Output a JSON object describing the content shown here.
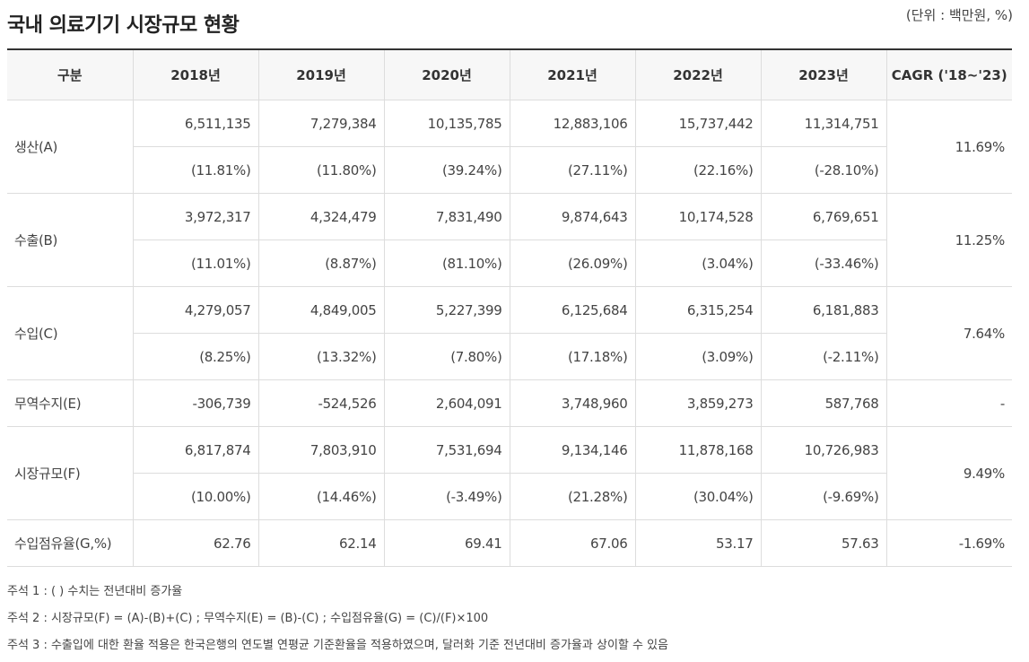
{
  "title": "국내 의료기기 시장규모 현황",
  "unit": "(단위 : 백만원, %)",
  "table": {
    "headers": [
      "구분",
      "2018년",
      "2019년",
      "2020년",
      "2021년",
      "2022년",
      "2023년",
      "CAGR ('18~'23)"
    ],
    "rows": [
      {
        "label": "생산(A)",
        "values": [
          "6,511,135",
          "7,279,384",
          "10,135,785",
          "12,883,106",
          "15,737,442",
          "11,314,751"
        ],
        "growth": [
          "(11.81%)",
          "(11.80%)",
          "(39.24%)",
          "(27.11%)",
          "(22.16%)",
          "(-28.10%)"
        ],
        "cagr": "11.69%"
      },
      {
        "label": "수출(B)",
        "values": [
          "3,972,317",
          "4,324,479",
          "7,831,490",
          "9,874,643",
          "10,174,528",
          "6,769,651"
        ],
        "growth": [
          "(11.01%)",
          "(8.87%)",
          "(81.10%)",
          "(26.09%)",
          "(3.04%)",
          "(-33.46%)"
        ],
        "cagr": "11.25%"
      },
      {
        "label": "수입(C)",
        "values": [
          "4,279,057",
          "4,849,005",
          "5,227,399",
          "6,125,684",
          "6,315,254",
          "6,181,883"
        ],
        "growth": [
          "(8.25%)",
          "(13.32%)",
          "(7.80%)",
          "(17.18%)",
          "(3.09%)",
          "(-2.11%)"
        ],
        "cagr": "7.64%"
      },
      {
        "label": "무역수지(E)",
        "values": [
          "-306,739",
          "-524,526",
          "2,604,091",
          "3,748,960",
          "3,859,273",
          "587,768"
        ],
        "cagr": "-"
      },
      {
        "label": "시장규모(F)",
        "values": [
          "6,817,874",
          "7,803,910",
          "7,531,694",
          "9,134,146",
          "11,878,168",
          "10,726,983"
        ],
        "growth": [
          "(10.00%)",
          "(14.46%)",
          "(-3.49%)",
          "(21.28%)",
          "(30.04%)",
          "(-9.69%)"
        ],
        "cagr": "9.49%"
      },
      {
        "label": "수입점유율(G,%)",
        "values": [
          "62.76",
          "62.14",
          "69.41",
          "67.06",
          "53.17",
          "57.63"
        ],
        "cagr": "-1.69%"
      }
    ]
  },
  "notes": [
    "주석 1 : ( ) 수치는 전년대비 증가율",
    "주석 2 : 시장규모(F) = (A)-(B)+(C) ; 무역수지(E) = (B)-(C) ; 수입점유율(G) = (C)/(F)×100",
    "주석 3 : 수출입에 대한 환율 적용은 한국은행의 연도별 연평균 기준환율을 적용하였으며, 달러화 기준 전년대비 증가율과 상이할 수 있음"
  ]
}
